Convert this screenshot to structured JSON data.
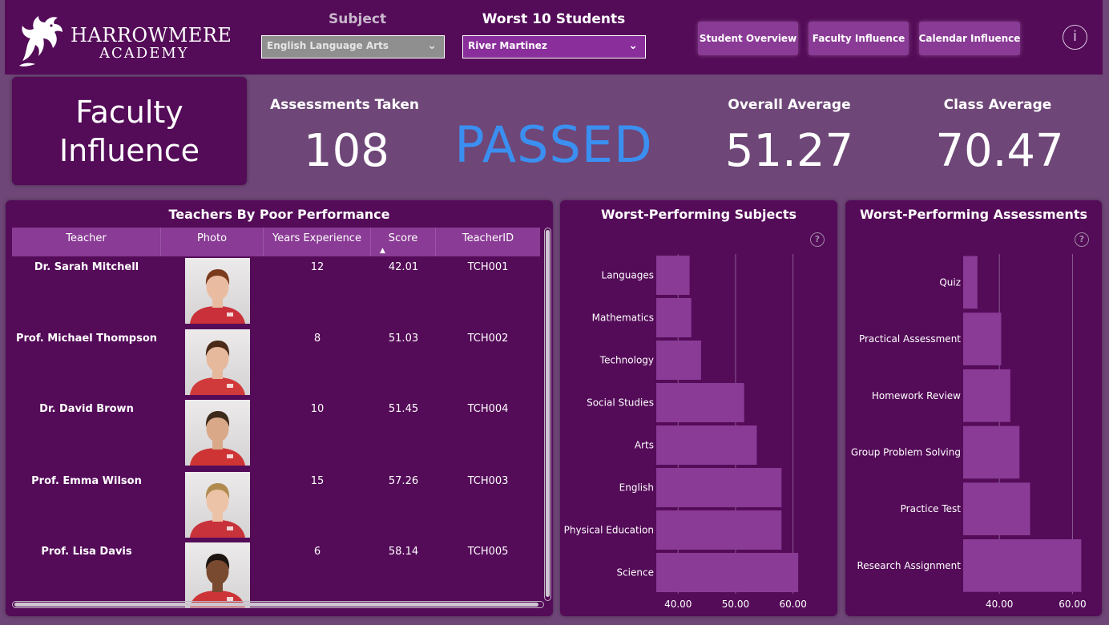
{
  "header": {
    "logo_name": "HARROWMERE",
    "logo_sub": "ACADEMY",
    "subject_slicer": {
      "title": "Subject",
      "value": "English Language Arts"
    },
    "student_slicer": {
      "title": "Worst 10 Students",
      "value": "River Martinez"
    },
    "nav": {
      "student_overview": "Student Overview",
      "faculty_influence": "Faculty Influence",
      "calendar_influence": "Calendar Influence"
    },
    "info_glyph": "i"
  },
  "page_title": {
    "line1": "Faculty",
    "line2": "Influence"
  },
  "kpis": {
    "assessments_label": "Assessments Taken",
    "assessments_value": "108",
    "status": "PASSED",
    "overall_label": "Overall Average",
    "overall_value": "51.27",
    "class_label": "Class Average",
    "class_value": "70.47"
  },
  "teachers_table": {
    "title": "Teachers By Poor Performance",
    "columns": [
      "Teacher",
      "Photo",
      "Years Experience",
      "Score",
      "TeacherID"
    ],
    "rows": [
      {
        "teacher": "Dr. Sarah Mitchell",
        "years": "12",
        "score": "42.01",
        "id": "TCH001"
      },
      {
        "teacher": "Prof. Michael Thompson",
        "years": "8",
        "score": "51.03",
        "id": "TCH002"
      },
      {
        "teacher": "Dr. David Brown",
        "years": "10",
        "score": "51.45",
        "id": "TCH004"
      },
      {
        "teacher": "Prof. Emma Wilson",
        "years": "15",
        "score": "57.26",
        "id": "TCH003"
      },
      {
        "teacher": "Prof. Lisa Davis",
        "years": "6",
        "score": "58.14",
        "id": "TCH005"
      }
    ]
  },
  "help_glyph": "?",
  "colors": {
    "bar": "#8a3b95",
    "panel": "#540b58",
    "passed": "#3b8ff0"
  },
  "chart_data": [
    {
      "type": "bar",
      "orientation": "horizontal",
      "title": "Worst-Performing Subjects",
      "categories": [
        "Languages",
        "Mathematics",
        "Technology",
        "Social Studies",
        "Arts",
        "English",
        "Physical Education",
        "Science"
      ],
      "values": [
        42,
        42.3,
        44,
        51.5,
        53.7,
        58,
        58,
        60.9
      ],
      "xlim": [
        36.2,
        62
      ],
      "xticks": [
        "40.00",
        "50.00",
        "60.00"
      ],
      "xtick_values": [
        40,
        50,
        60
      ],
      "grid": true
    },
    {
      "type": "bar",
      "orientation": "horizontal",
      "title": "Worst-Performing Assessments",
      "categories": [
        "Quiz",
        "Practical Assessment",
        "Homework Review",
        "Group Problem Solving",
        "Practice Test",
        "Research Assignment"
      ],
      "values": [
        34,
        40.5,
        43,
        45.5,
        48.4,
        62.4
      ],
      "xlim": [
        30.1,
        64.5
      ],
      "xticks": [
        "40.00",
        "60.00"
      ],
      "xtick_values": [
        40,
        60
      ],
      "grid": true
    }
  ]
}
